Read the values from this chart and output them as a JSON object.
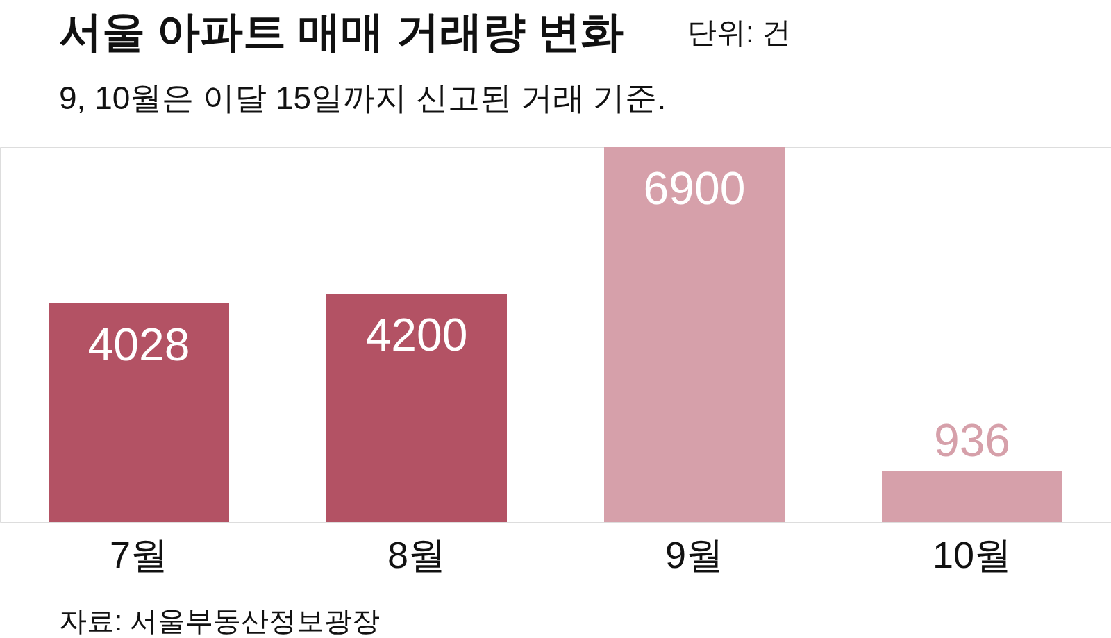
{
  "chart_data": {
    "type": "bar",
    "title": "서울 아파트 매매 거래량 변화",
    "subtitle": "9, 10월은 이달 15일까지 신고된 거래 기준.",
    "annotations": [
      "단위: 건",
      "자료: 서울부동산정보광장"
    ],
    "categories": [
      "7월",
      "8월",
      "9월",
      "10월"
    ],
    "values": [
      4028,
      4200,
      6900,
      936
    ],
    "colors": [
      "#b35264",
      "#b35264",
      "#d6a0aa",
      "#d6a0aa"
    ],
    "data_labels": true
  }
}
